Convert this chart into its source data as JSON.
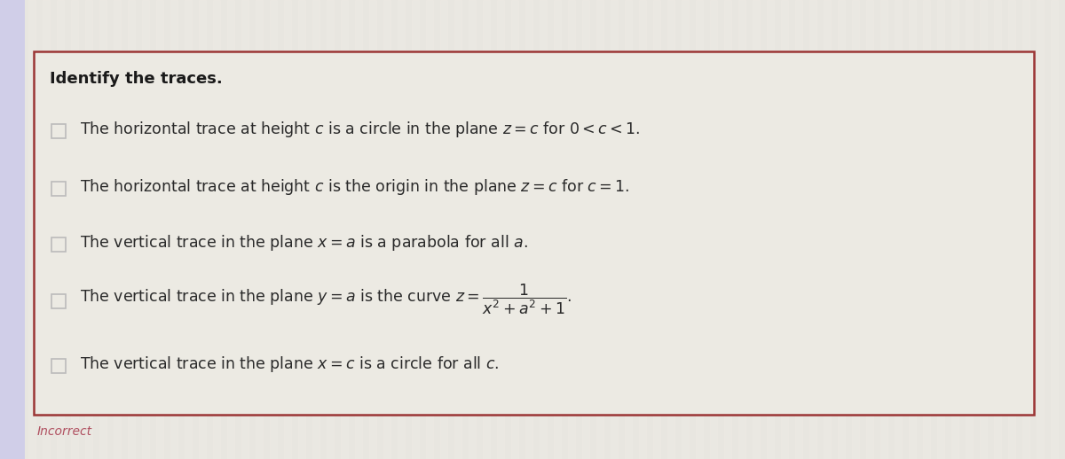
{
  "title": "Identify the traces.",
  "items": [
    "The horizontal trace at height $c$ is a circle in the plane $z = c$ for $0 < c < 1$.",
    "The horizontal trace at height $c$ is the origin in the plane $z = c$ for $c = 1$.",
    "The vertical trace in the plane $x = a$ is a parabola for all $a$.",
    "The vertical trace in the plane $y = a$ is the curve $z = \\dfrac{1}{x^2 + a^2 + 1}$.",
    "The vertical trace in the plane $x = c$ is a circle for all $c$."
  ],
  "outer_bg_color": "#e8e6e0",
  "left_sidebar_color": "#d0cee8",
  "box_bg_color": "#eceae3",
  "box_edge_color": "#9b3535",
  "text_color": "#2a2a2a",
  "title_color": "#1a1a1a",
  "checkbox_color": "#bbbbbb",
  "incorrect_color": "#b05060",
  "incorrect_text": "Incorrect",
  "title_fontsize": 13,
  "item_fontsize": 12.5
}
